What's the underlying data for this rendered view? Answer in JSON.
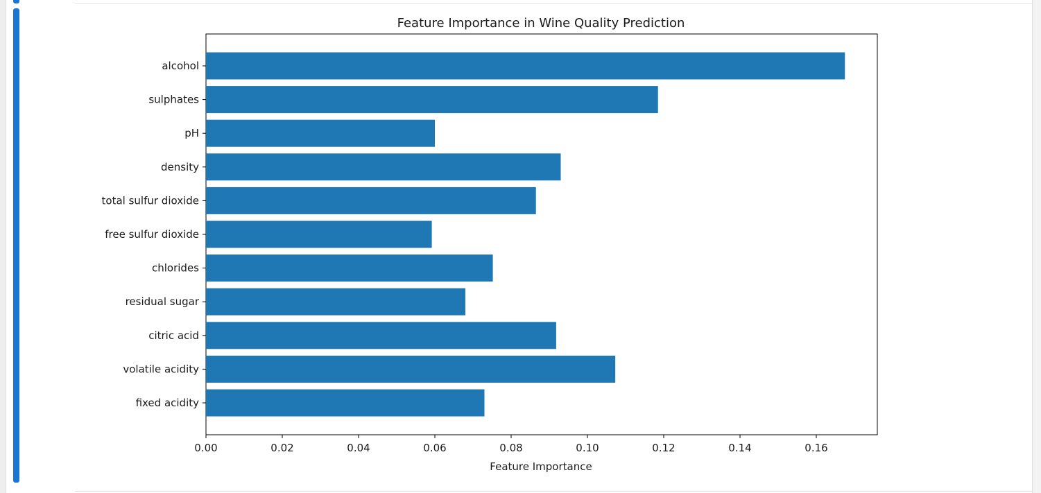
{
  "chart_data": {
    "type": "bar",
    "orientation": "horizontal",
    "title": "Feature Importance in Wine Quality Prediction",
    "xlabel": "Feature Importance",
    "ylabel": "",
    "xlim": [
      0,
      0.176
    ],
    "xticks": [
      0.0,
      0.02,
      0.04,
      0.06,
      0.08,
      0.1,
      0.12,
      0.14,
      0.16
    ],
    "xtick_labels": [
      "0.00",
      "0.02",
      "0.04",
      "0.06",
      "0.08",
      "0.10",
      "0.12",
      "0.14",
      "0.16"
    ],
    "categories": [
      "fixed acidity",
      "volatile acidity",
      "citric acid",
      "residual sugar",
      "chlorides",
      "free sulfur dioxide",
      "total sulfur dioxide",
      "density",
      "pH",
      "sulphates",
      "alcohol"
    ],
    "values": [
      0.073,
      0.1073,
      0.0918,
      0.068,
      0.0752,
      0.0592,
      0.0865,
      0.093,
      0.06,
      0.1185,
      0.1675
    ],
    "bar_color": "#1f77b4",
    "grid": false
  }
}
